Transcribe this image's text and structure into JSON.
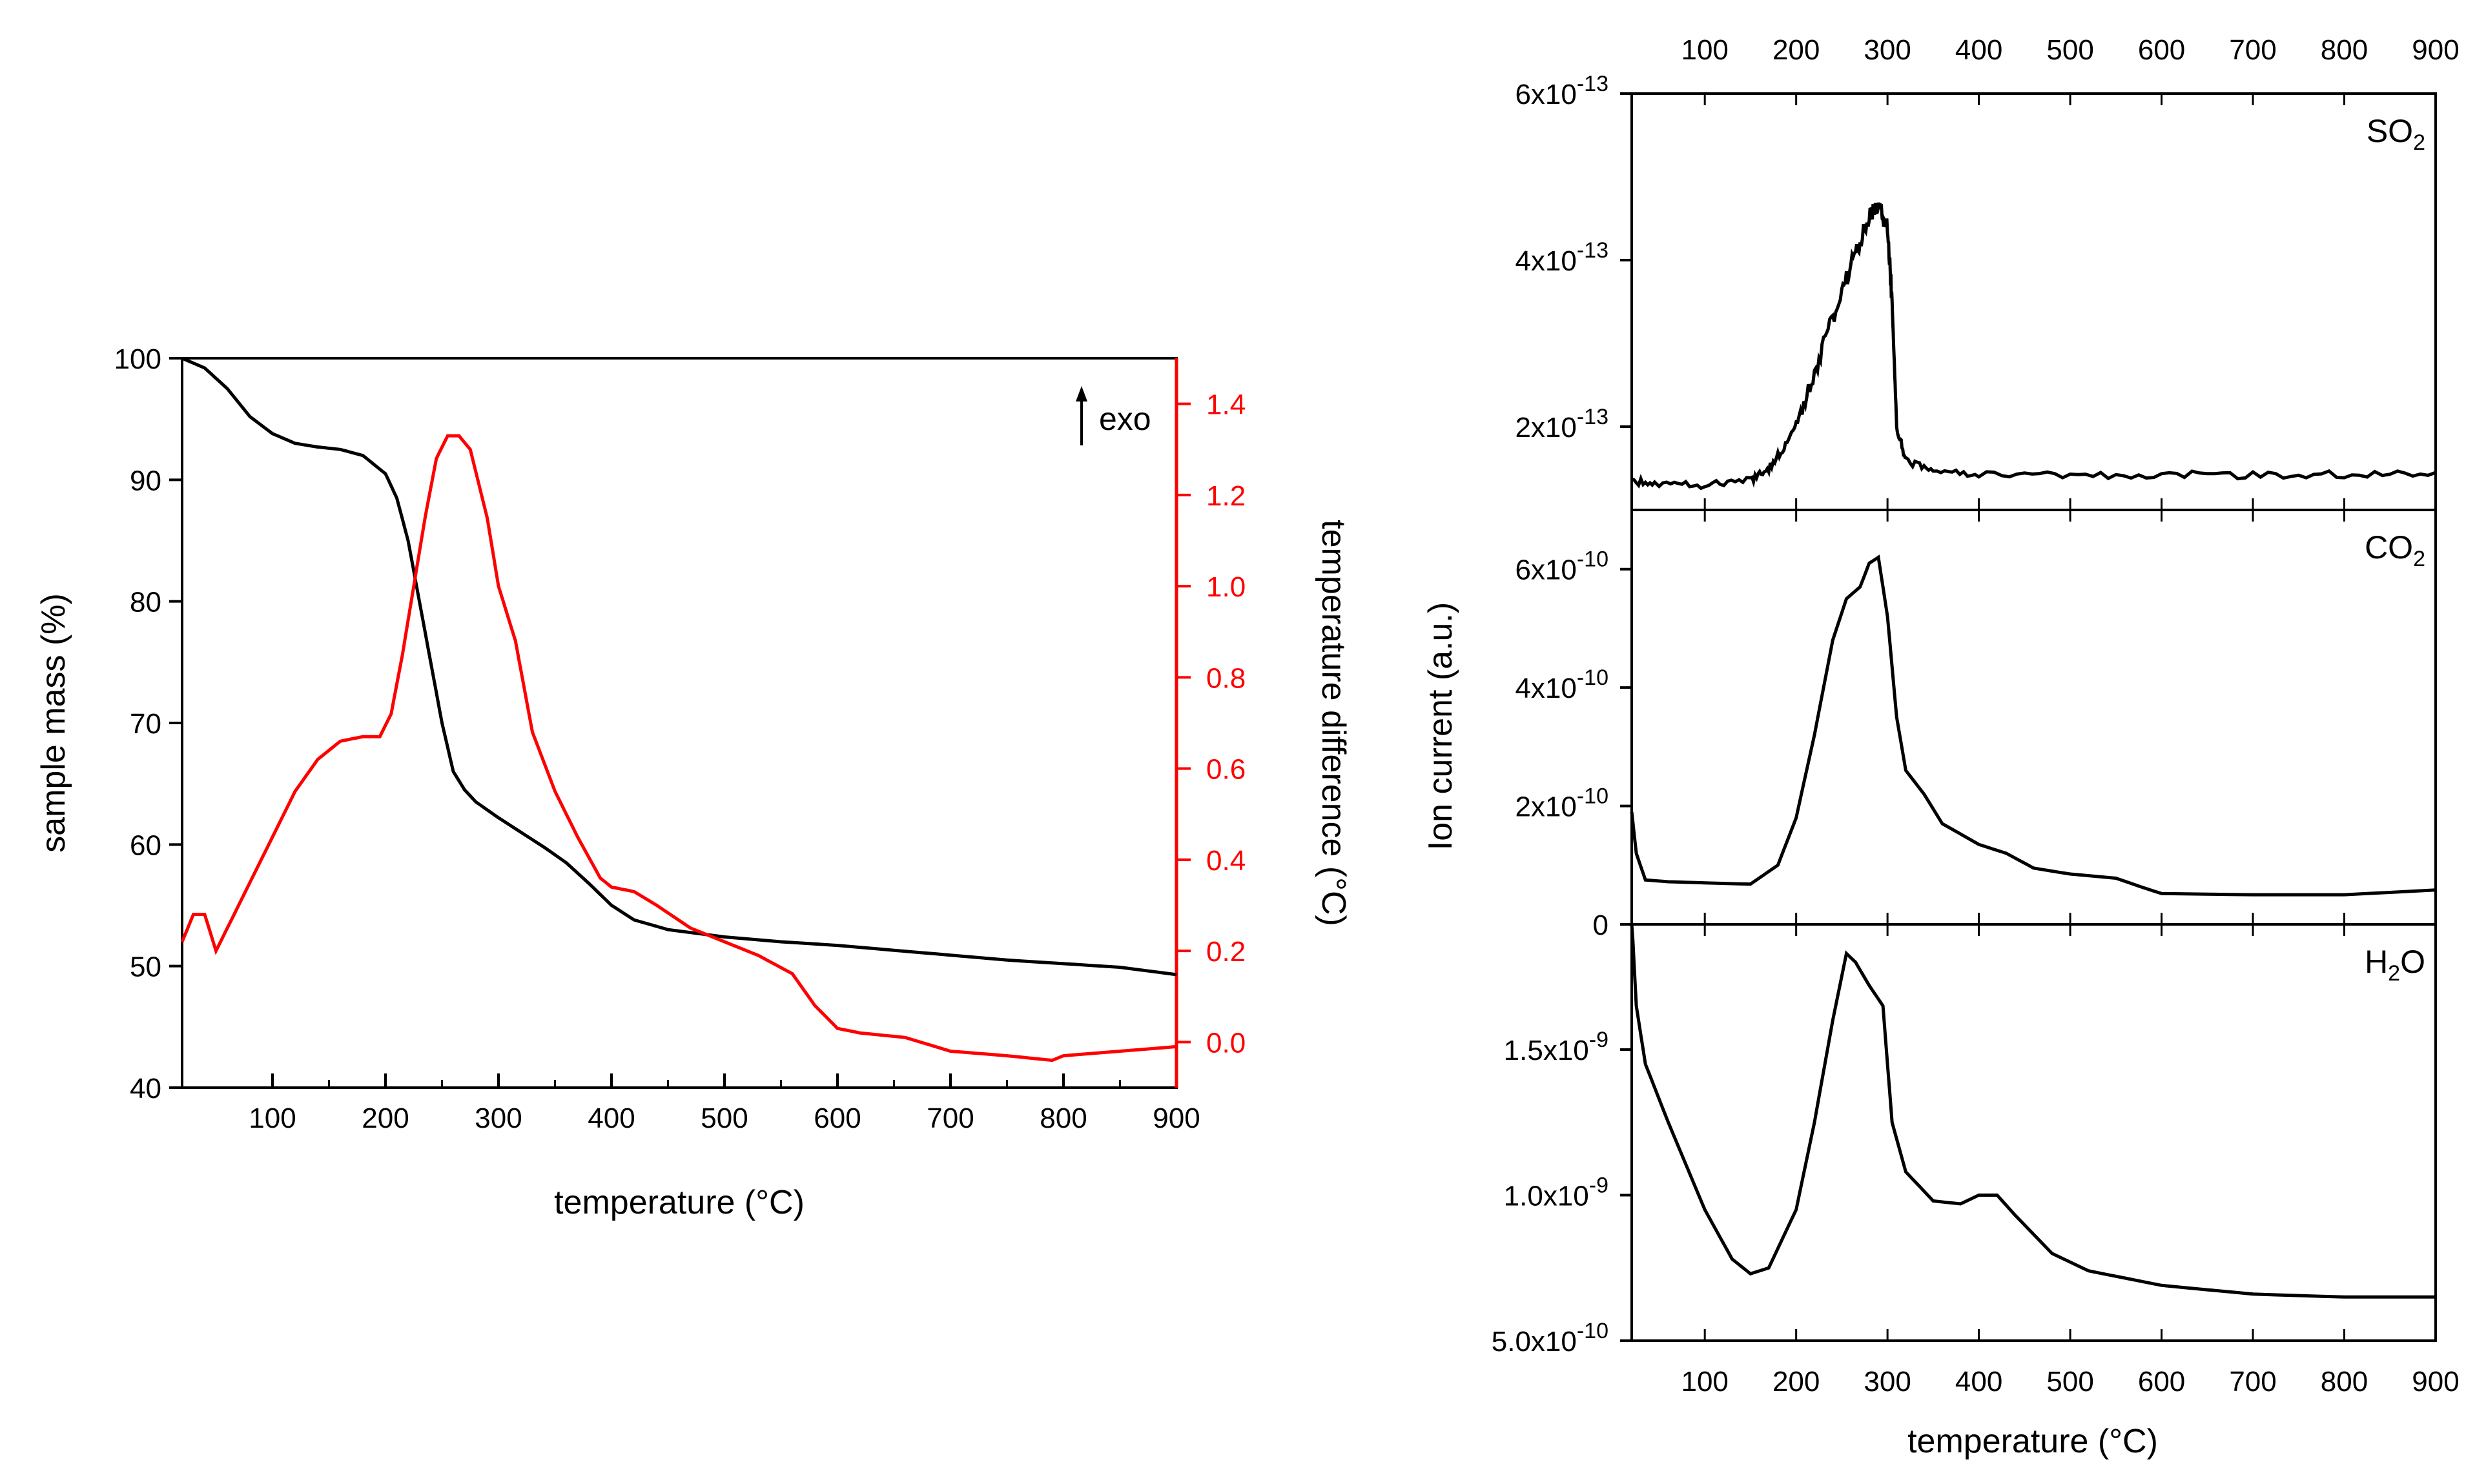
{
  "colors": {
    "mass_curve": "#000000",
    "dta_curve": "#ff0000",
    "axis": "#000000",
    "right_axis": "#ff0000",
    "ms_curve": "#000000"
  },
  "chart_data": [
    {
      "id": "tg_dta",
      "type": "line",
      "xlabel": "temperature (°C)",
      "ylabel": "sample mass (%)",
      "y2label": "temperature difference (°C)",
      "annotation": "exo",
      "annotation_icon": "up-arrow-icon",
      "xlim": [
        20,
        900
      ],
      "ylim": [
        40,
        100
      ],
      "y2lim": [
        -0.1,
        1.5
      ],
      "x_ticks": [
        100,
        200,
        300,
        400,
        500,
        600,
        700,
        800,
        900
      ],
      "y_ticks": [
        40,
        50,
        60,
        70,
        80,
        90,
        100
      ],
      "y2_ticks": [
        "0.0",
        "0.2",
        "0.4",
        "0.6",
        "0.8",
        "1.0",
        "1.2",
        "1.4"
      ],
      "series": [
        {
          "name": "sample mass",
          "axis": "left",
          "color": "#000000",
          "points": [
            [
              20,
              100
            ],
            [
              40,
              99.2
            ],
            [
              60,
              97.5
            ],
            [
              80,
              95.2
            ],
            [
              100,
              93.8
            ],
            [
              120,
              93.0
            ],
            [
              140,
              92.7
            ],
            [
              160,
              92.5
            ],
            [
              180,
              92.0
            ],
            [
              200,
              90.5
            ],
            [
              210,
              88.5
            ],
            [
              220,
              85.0
            ],
            [
              230,
              80.0
            ],
            [
              240,
              75.0
            ],
            [
              250,
              70.0
            ],
            [
              260,
              66.0
            ],
            [
              270,
              64.5
            ],
            [
              280,
              63.5
            ],
            [
              300,
              62.2
            ],
            [
              320,
              61.0
            ],
            [
              340,
              59.8
            ],
            [
              360,
              58.5
            ],
            [
              380,
              56.8
            ],
            [
              400,
              55.0
            ],
            [
              420,
              53.8
            ],
            [
              450,
              53.0
            ],
            [
              500,
              52.4
            ],
            [
              550,
              52.0
            ],
            [
              600,
              51.7
            ],
            [
              650,
              51.3
            ],
            [
              700,
              50.9
            ],
            [
              750,
              50.5
            ],
            [
              800,
              50.2
            ],
            [
              850,
              49.9
            ],
            [
              900,
              49.3
            ]
          ]
        },
        {
          "name": "temperature difference",
          "axis": "right",
          "color": "#ff0000",
          "points": [
            [
              20,
              0.22
            ],
            [
              30,
              0.28
            ],
            [
              40,
              0.28
            ],
            [
              50,
              0.2
            ],
            [
              60,
              0.25
            ],
            [
              80,
              0.35
            ],
            [
              100,
              0.45
            ],
            [
              120,
              0.55
            ],
            [
              140,
              0.62
            ],
            [
              160,
              0.66
            ],
            [
              180,
              0.67
            ],
            [
              195,
              0.67
            ],
            [
              205,
              0.72
            ],
            [
              215,
              0.85
            ],
            [
              225,
              1.0
            ],
            [
              235,
              1.15
            ],
            [
              245,
              1.28
            ],
            [
              255,
              1.33
            ],
            [
              265,
              1.33
            ],
            [
              275,
              1.3
            ],
            [
              290,
              1.15
            ],
            [
              300,
              1.0
            ],
            [
              315,
              0.88
            ],
            [
              330,
              0.68
            ],
            [
              350,
              0.55
            ],
            [
              370,
              0.45
            ],
            [
              390,
              0.36
            ],
            [
              400,
              0.34
            ],
            [
              420,
              0.33
            ],
            [
              440,
              0.3
            ],
            [
              470,
              0.25
            ],
            [
              500,
              0.22
            ],
            [
              530,
              0.19
            ],
            [
              560,
              0.15
            ],
            [
              580,
              0.08
            ],
            [
              600,
              0.03
            ],
            [
              620,
              0.02
            ],
            [
              660,
              0.01
            ],
            [
              700,
              -0.02
            ],
            [
              750,
              -0.03
            ],
            [
              790,
              -0.04
            ],
            [
              800,
              -0.03
            ],
            [
              850,
              -0.02
            ],
            [
              900,
              -0.01
            ]
          ]
        }
      ]
    },
    {
      "id": "ms",
      "type": "line",
      "xlabel": "temperature (°C)",
      "ylabel": "Ion current (a.u.)",
      "xlim": [
        20,
        900
      ],
      "x_ticks": [
        100,
        200,
        300,
        400,
        500,
        600,
        700,
        800,
        900
      ],
      "panels": [
        {
          "name": "SO",
          "sub": "2",
          "ylim": [
            1e-13,
            6e-13
          ],
          "y_ticks": [
            {
              "v": 2e-13,
              "m": "2x10",
              "e": "-13"
            },
            {
              "v": 4e-13,
              "m": "4x10",
              "e": "-13"
            },
            {
              "v": 6e-13,
              "m": "6x10",
              "e": "-13"
            }
          ],
          "noise": 0.018,
          "points": [
            [
              20,
              1.35e-13
            ],
            [
              50,
              1.3e-13
            ],
            [
              100,
              1.3e-13
            ],
            [
              150,
              1.35e-13
            ],
            [
              170,
              1.5e-13
            ],
            [
              190,
              1.8e-13
            ],
            [
              210,
              2.3e-13
            ],
            [
              230,
              3e-13
            ],
            [
              250,
              3.6e-13
            ],
            [
              265,
              4.1e-13
            ],
            [
              280,
              4.5e-13
            ],
            [
              290,
              4.65e-13
            ],
            [
              300,
              4.4e-13
            ],
            [
              305,
              3.5e-13
            ],
            [
              310,
              2e-13
            ],
            [
              320,
              1.6e-13
            ],
            [
              350,
              1.45e-13
            ],
            [
              400,
              1.43e-13
            ],
            [
              500,
              1.42e-13
            ],
            [
              600,
              1.42e-13
            ],
            [
              700,
              1.42e-13
            ],
            [
              800,
              1.43e-13
            ],
            [
              900,
              1.45e-13
            ]
          ]
        },
        {
          "name": "CO",
          "sub": "2",
          "ylim": [
            0,
            7e-10
          ],
          "y_ticks": [
            {
              "v": 0,
              "m": "0",
              "e": ""
            },
            {
              "v": 2e-10,
              "m": "2x10",
              "e": "-10"
            },
            {
              "v": 4e-10,
              "m": "4x10",
              "e": "-10"
            },
            {
              "v": 6e-10,
              "m": "6x10",
              "e": "-10"
            }
          ],
          "noise": 0,
          "points": [
            [
              20,
              1.9e-10
            ],
            [
              25,
              1.2e-10
            ],
            [
              35,
              7.5e-11
            ],
            [
              60,
              7.2e-11
            ],
            [
              100,
              7e-11
            ],
            [
              150,
              6.8e-11
            ],
            [
              180,
              1e-10
            ],
            [
              200,
              1.8e-10
            ],
            [
              220,
              3.2e-10
            ],
            [
              240,
              4.8e-10
            ],
            [
              255,
              5.5e-10
            ],
            [
              270,
              5.7e-10
            ],
            [
              280,
              6.1e-10
            ],
            [
              290,
              6.2e-10
            ],
            [
              300,
              5.2e-10
            ],
            [
              310,
              3.5e-10
            ],
            [
              320,
              2.6e-10
            ],
            [
              340,
              2.2e-10
            ],
            [
              360,
              1.7e-10
            ],
            [
              400,
              1.35e-10
            ],
            [
              430,
              1.2e-10
            ],
            [
              460,
              9.5e-11
            ],
            [
              500,
              8.5e-11
            ],
            [
              550,
              7.8e-11
            ],
            [
              580,
              6.2e-11
            ],
            [
              600,
              5.2e-11
            ],
            [
              700,
              5e-11
            ],
            [
              800,
              5e-11
            ],
            [
              900,
              5.8e-11
            ]
          ]
        },
        {
          "name": "H",
          "sub": "2",
          "tail": "O",
          "ylim": [
            5e-10,
            1.93e-09
          ],
          "y_ticks": [
            {
              "v": 5e-10,
              "m": "5.0x10",
              "e": "-10"
            },
            {
              "v": 1e-09,
              "m": "1.0x10",
              "e": "-9"
            },
            {
              "v": 1.5e-09,
              "m": "1.5x10",
              "e": "-9"
            }
          ],
          "noise": 0,
          "points": [
            [
              20,
              1.95e-09
            ],
            [
              25,
              1.65e-09
            ],
            [
              35,
              1.45e-09
            ],
            [
              60,
              1.25e-09
            ],
            [
              100,
              9.5e-10
            ],
            [
              130,
              7.8e-10
            ],
            [
              150,
              7.3e-10
            ],
            [
              170,
              7.5e-10
            ],
            [
              200,
              9.5e-10
            ],
            [
              220,
              1.25e-09
            ],
            [
              240,
              1.6e-09
            ],
            [
              255,
              1.83e-09
            ],
            [
              265,
              1.8e-09
            ],
            [
              280,
              1.72e-09
            ],
            [
              295,
              1.65e-09
            ],
            [
              305,
              1.25e-09
            ],
            [
              320,
              1.08e-09
            ],
            [
              350,
              9.8e-10
            ],
            [
              380,
              9.7e-10
            ],
            [
              400,
              1e-09
            ],
            [
              420,
              1e-09
            ],
            [
              440,
              9.3e-10
            ],
            [
              480,
              8e-10
            ],
            [
              520,
              7.4e-10
            ],
            [
              600,
              6.9e-10
            ],
            [
              700,
              6.6e-10
            ],
            [
              800,
              6.5e-10
            ],
            [
              900,
              6.5e-10
            ]
          ]
        }
      ]
    }
  ]
}
